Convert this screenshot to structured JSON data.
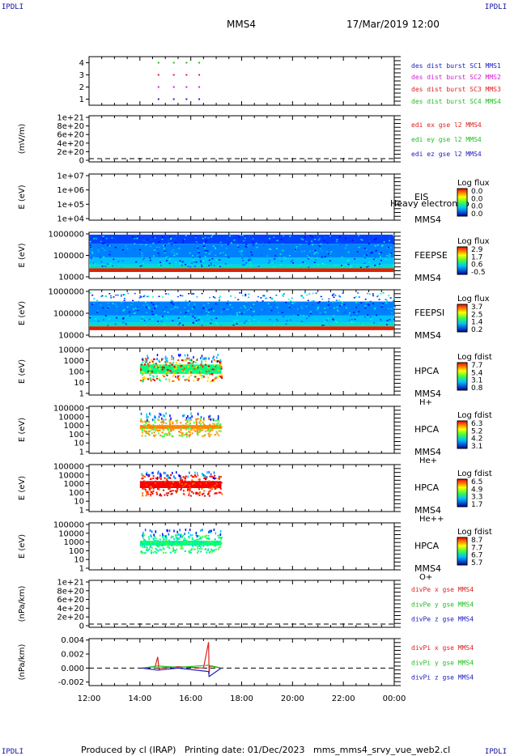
{
  "corner_label": "IPDLI",
  "header": {
    "mission": "MMS4",
    "datetime": "17/Mar/2019 12:00"
  },
  "footer": {
    "produced_by": "Produced by cl (IRAP)",
    "printing_date": "Printing date: 01/Dec/2023",
    "filename": "mms_mms4_srvy_vue_web2.cl"
  },
  "x_axis": {
    "ticks": [
      "12:00",
      "14:00",
      "16:00",
      "18:00",
      "20:00",
      "22:00",
      "00:00"
    ],
    "range_hours": [
      12,
      24
    ]
  },
  "chart_data": [
    {
      "type": "scatter",
      "title": "burst availability",
      "y_ticks": [
        "1",
        "2",
        "3",
        "4"
      ],
      "ylim": [
        0.5,
        4.5
      ],
      "series": [
        {
          "name": "des dist burst SC1 MMS1",
          "color": "#2020c0",
          "y": 1,
          "x": [
            14.7,
            15.3,
            15.8,
            16.3
          ]
        },
        {
          "name": "des dist burst SC2 MMS2",
          "color": "#d020d0",
          "y": 2,
          "x": [
            14.7,
            15.3,
            15.8,
            16.3
          ]
        },
        {
          "name": "des dist burst SC3 MMS3",
          "color": "#e02020",
          "y": 3,
          "x": [
            14.7,
            15.3,
            15.8,
            16.3
          ]
        },
        {
          "name": "des dist burst SC4 MMS4",
          "color": "#20c020",
          "y": 4,
          "x": [
            14.7,
            15.3,
            15.8,
            16.3
          ]
        }
      ]
    },
    {
      "type": "line",
      "ylabel": "(mV/m)",
      "y_ticks": [
        "0",
        "2e+20",
        "4e+20",
        "6e+20",
        "8e+20",
        "1e+21"
      ],
      "series": [
        {
          "name": "edi ex gse l2 MMS4",
          "color": "#e02020",
          "values": []
        },
        {
          "name": "edi ey gse l2 MMS4",
          "color": "#20c020",
          "values": []
        },
        {
          "name": "edi ez gse l2 MMS4",
          "color": "#2020c0",
          "values": []
        }
      ]
    },
    {
      "type": "heatmap",
      "ylabel": "E (eV)",
      "y_ticks": [
        "1e+04",
        "1e+05",
        "1e+06",
        "1e+07"
      ],
      "instrument": "EIS",
      "spacecraft": "MMS4",
      "overlay_text": "Heavy electron to",
      "colorbar": {
        "title": "Log flux",
        "ticks": [
          "0.0",
          "0.0",
          "0.0",
          "0.0"
        ]
      }
    },
    {
      "type": "heatmap",
      "ylabel": "E (eV)",
      "y_ticks": [
        "10000",
        "100000",
        "1000000"
      ],
      "instrument": "FEEPSE",
      "spacecraft": "MMS4",
      "colorbar": {
        "title": "Log flux",
        "ticks": [
          "2.9",
          "1.7",
          "0.6",
          "-0.5"
        ]
      },
      "coverage_hours": [
        12,
        24
      ]
    },
    {
      "type": "heatmap",
      "ylabel": "E (eV)",
      "y_ticks": [
        "10000",
        "100000",
        "1000000"
      ],
      "instrument": "FEEPSI",
      "spacecraft": "MMS4",
      "colorbar": {
        "title": "Log flux",
        "ticks": [
          "3.7",
          "2.5",
          "1.4",
          "0.2"
        ]
      },
      "coverage_hours": [
        12,
        24
      ]
    },
    {
      "type": "heatmap",
      "ylabel": "E (eV)",
      "y_ticks": [
        "1",
        "10",
        "100",
        "1000",
        "10000"
      ],
      "instrument": "HPCA",
      "spacecraft": "MMS4",
      "species": "H+",
      "colorbar": {
        "title": "Log fdist",
        "ticks": [
          "7.7",
          "5.4",
          "3.1",
          "0.8"
        ]
      },
      "coverage_hours": [
        14.0,
        17.2
      ]
    },
    {
      "type": "heatmap",
      "ylabel": "E (eV)",
      "y_ticks": [
        "1",
        "10",
        "100",
        "1000",
        "10000",
        "100000"
      ],
      "instrument": "HPCA",
      "spacecraft": "MMS4",
      "species": "He+",
      "colorbar": {
        "title": "Log fdist",
        "ticks": [
          "6.3",
          "5.2",
          "4.2",
          "3.1"
        ]
      },
      "coverage_hours": [
        14.0,
        17.2
      ]
    },
    {
      "type": "heatmap",
      "ylabel": "E (eV)",
      "y_ticks": [
        "1",
        "10",
        "100",
        "1000",
        "10000",
        "100000"
      ],
      "instrument": "HPCA",
      "spacecraft": "MMS4",
      "species": "He++",
      "colorbar": {
        "title": "Log fdist",
        "ticks": [
          "6.5",
          "4.9",
          "3.3",
          "1.7"
        ]
      },
      "coverage_hours": [
        14.0,
        17.2
      ]
    },
    {
      "type": "heatmap",
      "ylabel": "E (eV)",
      "y_ticks": [
        "1",
        "10",
        "100",
        "1000",
        "10000",
        "100000"
      ],
      "instrument": "HPCA",
      "spacecraft": "MMS4",
      "species": "O+",
      "colorbar": {
        "title": "Log fdist",
        "ticks": [
          "8.7",
          "7.7",
          "6.7",
          "5.7"
        ]
      },
      "coverage_hours": [
        14.0,
        17.2
      ]
    },
    {
      "type": "line",
      "ylabel": "(nPa/km)",
      "y_ticks": [
        "0",
        "2e+20",
        "4e+20",
        "6e+20",
        "8e+20",
        "1e+21"
      ],
      "series": [
        {
          "name": "divPe x gse MMS4",
          "color": "#e02020",
          "values": []
        },
        {
          "name": "divPe y gse MMS4",
          "color": "#20c020",
          "values": []
        },
        {
          "name": "divPe z gse MMS4",
          "color": "#2020c0",
          "values": []
        }
      ]
    },
    {
      "type": "line",
      "ylabel": "(nPa/km)",
      "y_ticks": [
        "-0.002",
        "0.000",
        "0.002",
        "0.004"
      ],
      "ylim": [
        -0.0025,
        0.0042
      ],
      "series": [
        {
          "name": "divPi x gse MMS4",
          "color": "#e02020",
          "x": [
            14.1,
            14.6,
            14.7,
            14.75,
            14.8,
            15.5,
            16.5,
            16.7,
            16.72,
            16.75,
            17.2
          ],
          "y": [
            0.0,
            0.0002,
            0.0016,
            -0.0002,
            0.0,
            0.0002,
            0.0,
            0.0037,
            -0.0008,
            0.0003,
            0.0
          ]
        },
        {
          "name": "divPi y gse MMS4",
          "color": "#20c020",
          "x": [
            14.1,
            14.7,
            15.5,
            16.7,
            17.2
          ],
          "y": [
            0.0,
            0.0003,
            0.0001,
            0.0004,
            0.0
          ]
        },
        {
          "name": "divPi z gse MMS4",
          "color": "#2020c0",
          "x": [
            14.1,
            14.7,
            15.5,
            16.7,
            16.72,
            17.2
          ],
          "y": [
            0.0,
            -0.0003,
            0.0,
            -0.0005,
            -0.0012,
            0.0
          ]
        }
      ]
    }
  ]
}
